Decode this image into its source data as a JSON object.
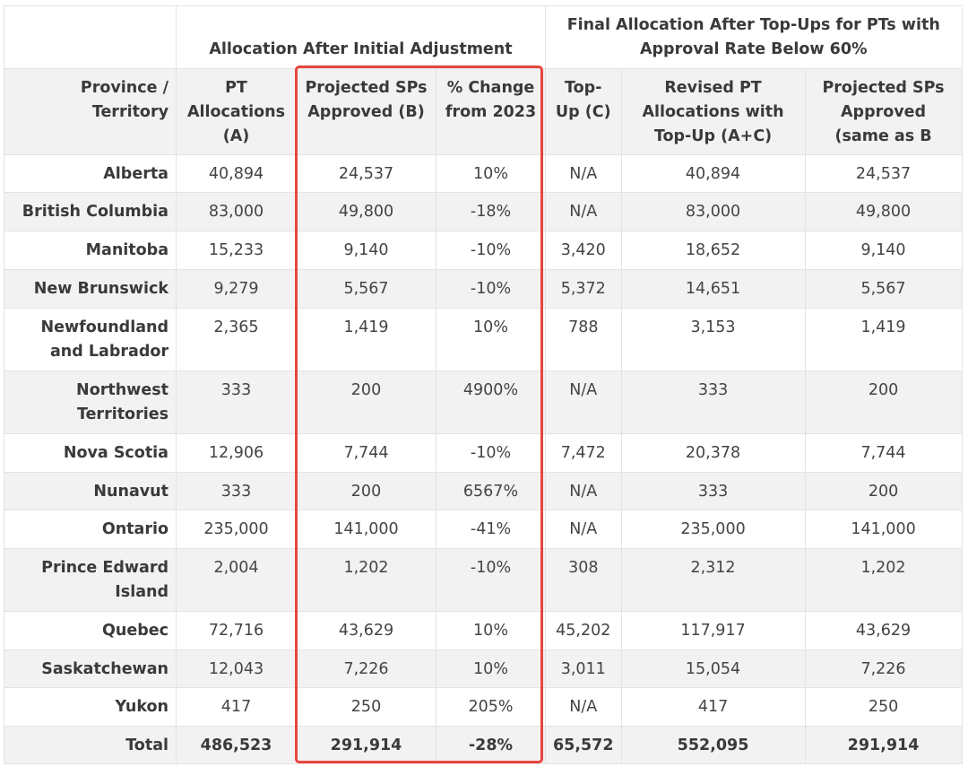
{
  "header": {
    "group1": "Allocation After Initial Adjustment",
    "group2": "Final Allocation After Top-Ups for PTs with Approval Rate Below 60%"
  },
  "columns": [
    "Province / Territory",
    "PT Allocations (A)",
    "Projected SPs Approved (B)",
    "% Change from 2023",
    "Top-Up (C)",
    "Revised PT Allocations with Top-Up (A+C)",
    "Projected SPs Approved (same as B"
  ],
  "rows": [
    [
      "Alberta",
      "40,894",
      "24,537",
      "10%",
      "N/A",
      "40,894",
      "24,537"
    ],
    [
      "British Columbia",
      "83,000",
      "49,800",
      "-18%",
      "N/A",
      "83,000",
      "49,800"
    ],
    [
      "Manitoba",
      "15,233",
      "9,140",
      "-10%",
      "3,420",
      "18,652",
      "9,140"
    ],
    [
      "New Brunswick",
      "9,279",
      "5,567",
      "-10%",
      "5,372",
      "14,651",
      "5,567"
    ],
    [
      "Newfoundland and Labrador",
      "2,365",
      "1,419",
      "10%",
      "788",
      "3,153",
      "1,419"
    ],
    [
      "Northwest Territories",
      "333",
      "200",
      "4900%",
      "N/A",
      "333",
      "200"
    ],
    [
      "Nova Scotia",
      "12,906",
      "7,744",
      "-10%",
      "7,472",
      "20,378",
      "7,744"
    ],
    [
      "Nunavut",
      "333",
      "200",
      "6567%",
      "N/A",
      "333",
      "200"
    ],
    [
      "Ontario",
      "235,000",
      "141,000",
      "-41%",
      "N/A",
      "235,000",
      "141,000"
    ],
    [
      "Prince Edward Island",
      "2,004",
      "1,202",
      "-10%",
      "308",
      "2,312",
      "1,202"
    ],
    [
      "Quebec",
      "72,716",
      "43,629",
      "10%",
      "45,202",
      "117,917",
      "43,629"
    ],
    [
      "Saskatchewan",
      "12,043",
      "7,226",
      "10%",
      "3,011",
      "15,054",
      "7,226"
    ],
    [
      "Yukon",
      "417",
      "250",
      "205%",
      "N/A",
      "417",
      "250"
    ]
  ],
  "total": [
    "Total",
    "486,523",
    "291,914",
    "-28%",
    "65,572",
    "552,095",
    "291,914"
  ],
  "colors": {
    "highlight": "#e8453c",
    "header_bg": "#f2f2f2",
    "border": "#e3e3e3"
  }
}
